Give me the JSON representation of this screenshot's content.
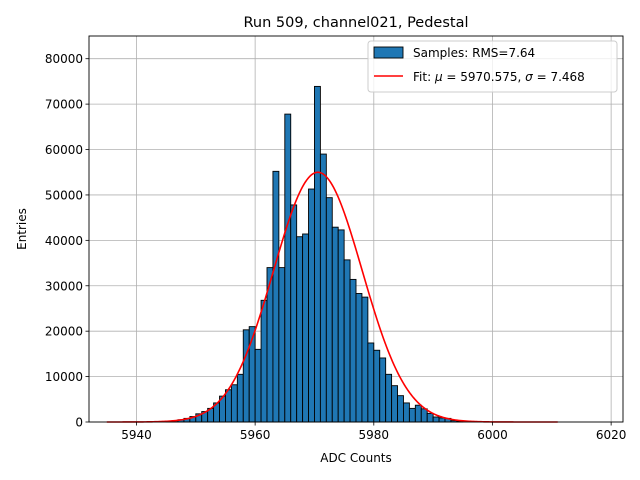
{
  "chart_data": {
    "type": "bar",
    "title": "Run 509, channel021, Pedestal",
    "xlabel": "ADC Counts",
    "ylabel": "Entries",
    "xlim": [
      5932,
      6022
    ],
    "ylim": [
      0,
      85000
    ],
    "xticks": [
      5940,
      5960,
      5980,
      6000,
      6020
    ],
    "yticks": [
      0,
      10000,
      20000,
      30000,
      40000,
      50000,
      60000,
      70000,
      80000
    ],
    "grid": true,
    "legend_position": "top-right",
    "bar_color": "#1f77b4",
    "fit_color": "#ff0000",
    "legend": {
      "hist_label": "Samples: RMS=7.64",
      "fit_prefix": "Fit: ",
      "mu_symbol": "μ",
      "mu_text": " = 5970.575, ",
      "sigma_symbol": "σ",
      "sigma_text": " = 7.468"
    },
    "fit": {
      "mu": 5970.575,
      "sigma": 7.468,
      "amplitude": 55000,
      "x_range": [
        5935,
        6011
      ]
    },
    "bins": {
      "x_start": 5945,
      "width": 1,
      "values": [
        100,
        300,
        500,
        800,
        1200,
        1800,
        2300,
        3000,
        4200,
        5700,
        7100,
        8200,
        10500,
        20300,
        21000,
        16000,
        26800,
        34000,
        55200,
        34000,
        67800,
        47800,
        40800,
        41400,
        51300,
        73900,
        59000,
        49400,
        42900,
        42300,
        35700,
        31400,
        28300,
        27500,
        17400,
        15800,
        14100,
        10500,
        8000,
        5800,
        4200,
        3000,
        3700,
        2900,
        1900,
        1100,
        900,
        800,
        300,
        200
      ]
    }
  }
}
